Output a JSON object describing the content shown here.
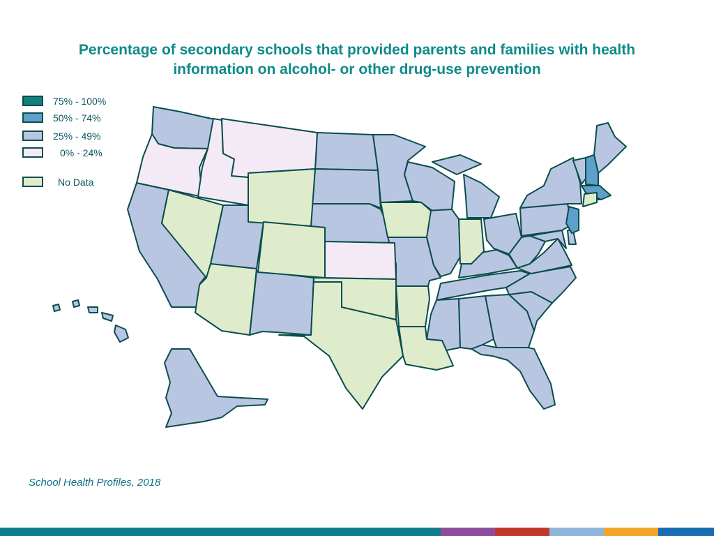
{
  "title": {
    "line1": "Percentage of secondary schools that provided parents and families with health",
    "line2": "information on alcohol- or other drug-use prevention"
  },
  "legend": [
    {
      "label": "75% - 100%",
      "color": "#128080"
    },
    {
      "label": "50% - 74%",
      "color": "#5f9fcb"
    },
    {
      "label": "25% - 49%",
      "color": "#b9c6e2"
    },
    {
      "label": "0% - 24%",
      "color": "#f4eaf6"
    },
    {
      "label": "No Data",
      "color": "#dfeccc"
    }
  ],
  "colors": {
    "border": "#0a4d4d",
    "title": "#0e8a8a",
    "source": "#0e6f8a"
  },
  "source": "School Health Profiles, 2018",
  "bottom_bar_colors": [
    "#0e7f8a",
    "#8e4d9c",
    "#c0392b",
    "#8fb6da",
    "#f2a42b",
    "#1a6cb4"
  ]
}
